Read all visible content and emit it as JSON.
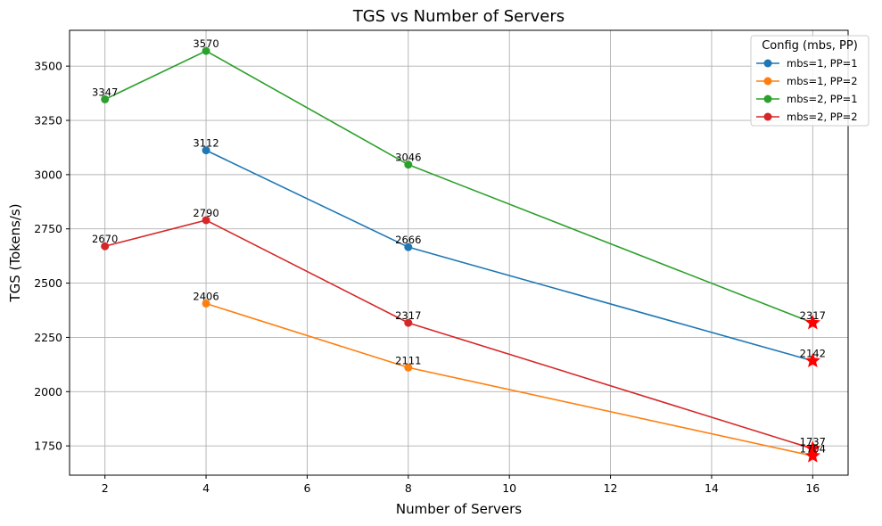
{
  "chart_data": {
    "type": "line",
    "title": "TGS vs Number of Servers",
    "xlabel": "Number of Servers",
    "ylabel": "TGS (Tokens/s)",
    "xlim": [
      1.3,
      16.7
    ],
    "ylim": [
      1615,
      3665
    ],
    "xticks": [
      2,
      4,
      6,
      8,
      10,
      12,
      14,
      16
    ],
    "yticks": [
      1750,
      2000,
      2250,
      2500,
      2750,
      3000,
      3250,
      3500
    ],
    "grid": true,
    "legend": {
      "title": "Config (mbs, PP)",
      "placement": "top-right"
    },
    "series": [
      {
        "name": "mbs=1, PP=1",
        "color": "#1f77b4",
        "x": [
          4,
          8,
          16
        ],
        "values": [
          3112,
          2666,
          2142
        ],
        "star_at": 16
      },
      {
        "name": "mbs=1, PP=2",
        "color": "#ff7f0e",
        "x": [
          4,
          8,
          16
        ],
        "values": [
          2406,
          2111,
          1704
        ],
        "star_at": 16
      },
      {
        "name": "mbs=2, PP=1",
        "color": "#2ca02c",
        "x": [
          2,
          4,
          8,
          16
        ],
        "values": [
          3347,
          3570,
          3046,
          2317
        ],
        "star_at": 16
      },
      {
        "name": "mbs=2, PP=2",
        "color": "#d62728",
        "x": [
          2,
          4,
          8,
          16
        ],
        "values": [
          2670,
          2790,
          2317,
          1737
        ],
        "star_at": 16
      }
    ],
    "highlight_marker": {
      "shape": "star",
      "color": "#ff0000"
    }
  }
}
